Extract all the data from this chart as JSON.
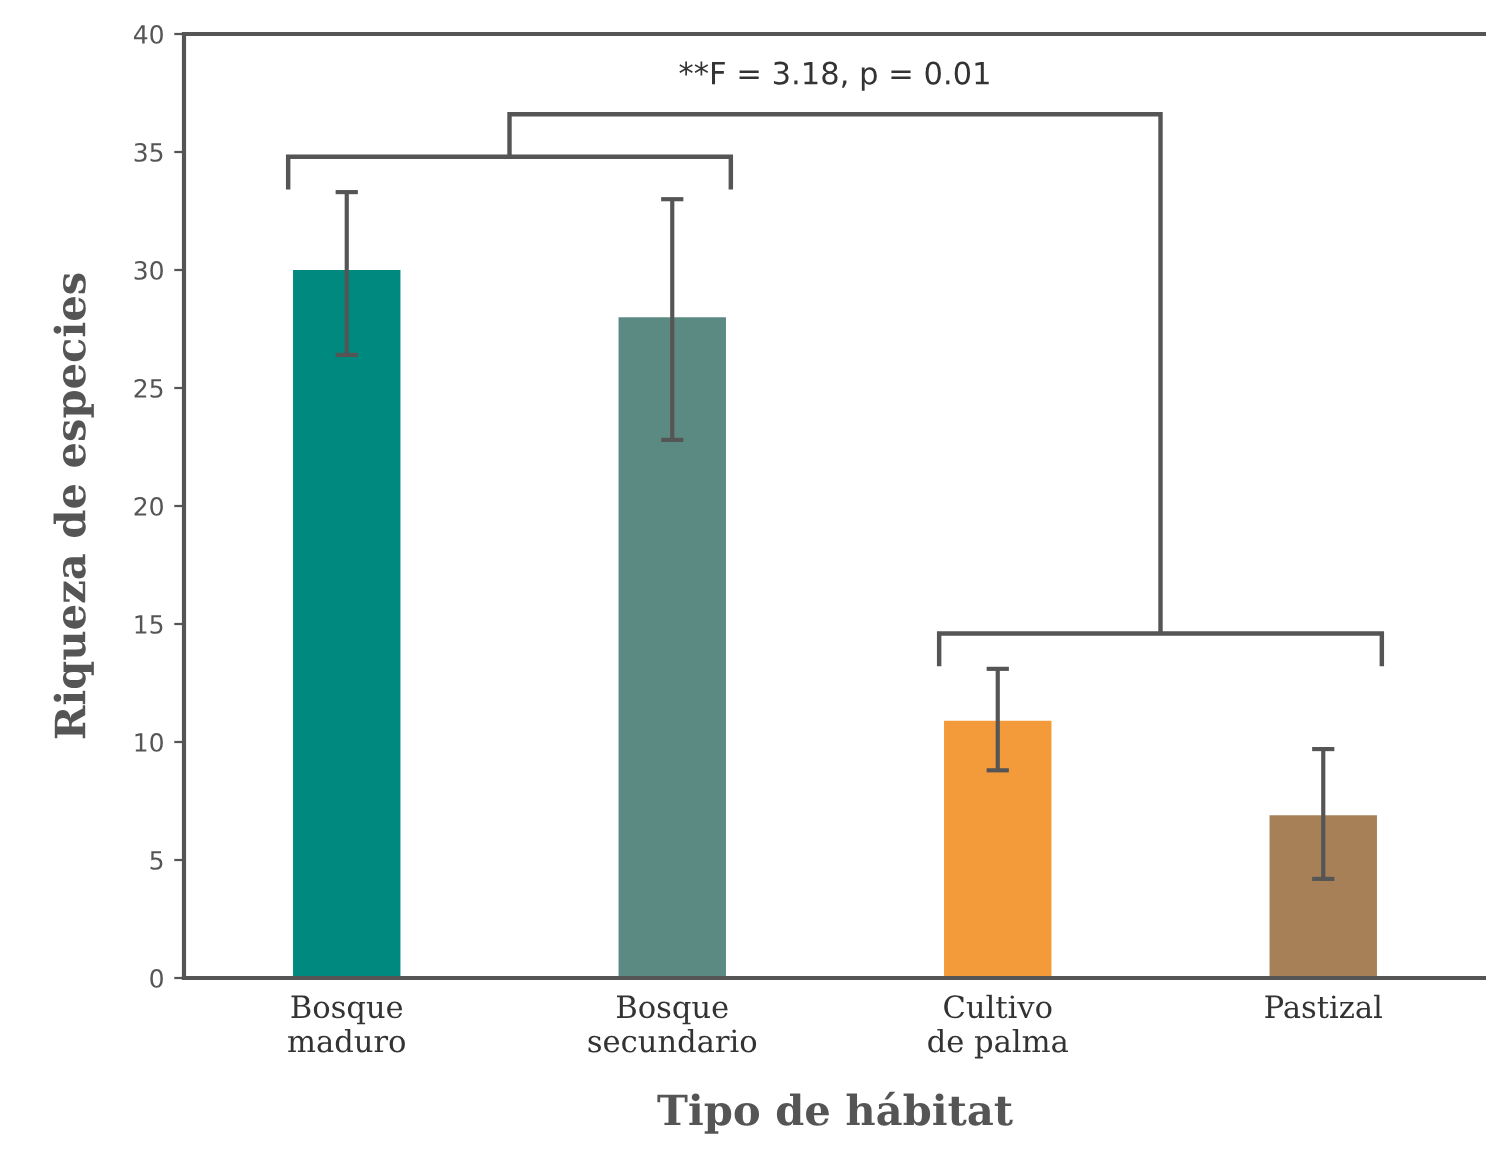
{
  "chart_data": {
    "type": "bar",
    "xlabel": "Tipo de hábitat",
    "ylabel": "Riqueza de especies",
    "categories": [
      "Bosque\nmaduro",
      "Bosque\nsecundario",
      "Cultivo\nde palma",
      "Pastizal"
    ],
    "values": [
      30,
      28,
      10.9,
      6.9
    ],
    "colors": [
      "#00897f",
      "#5a8a82",
      "#f39a3a",
      "#a88058"
    ],
    "errors": [
      [
        26.4,
        33.3
      ],
      [
        22.8,
        33.0
      ],
      [
        8.8,
        13.1
      ],
      [
        4.2,
        9.7
      ]
    ],
    "ylim": [
      0,
      40
    ],
    "yticks": [
      0,
      5,
      10,
      15,
      20,
      25,
      30,
      35,
      40
    ],
    "grid": false,
    "annotations": [
      "**F = 3.18, p = 0.01"
    ]
  }
}
